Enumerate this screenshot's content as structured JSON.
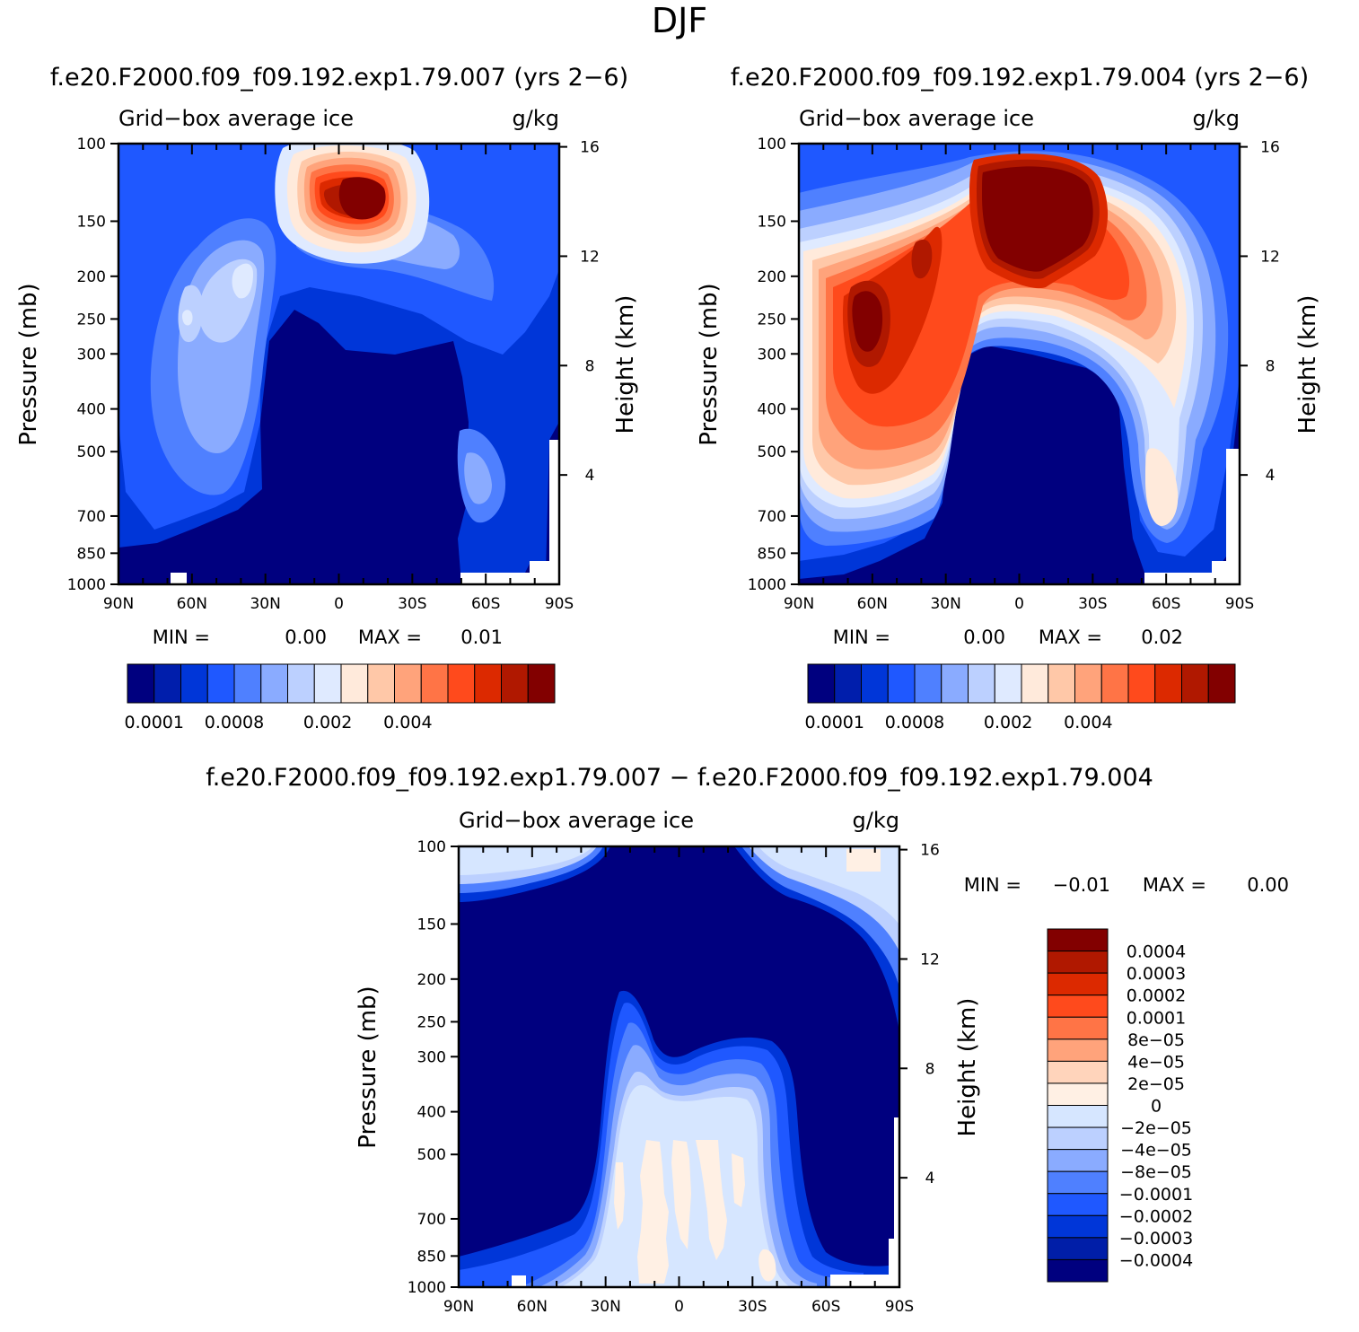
{
  "figure": {
    "title": "DJF",
    "units": "g/kg",
    "variable_label": "Grid−box average ice",
    "colors": {
      "seq": [
        "#00007f",
        "#001eac",
        "#0036d8",
        "#1f58ff",
        "#4f80ff",
        "#8aabff",
        "#bcd0ff",
        "#dfeaff",
        "#ffeadb",
        "#ffc8a8",
        "#ffa37b",
        "#ff7446",
        "#ff4a1c",
        "#dc2900",
        "#b01800",
        "#820000"
      ],
      "diff": [
        "#00007f",
        "#001ea8",
        "#0036d8",
        "#1f58ff",
        "#4f80ff",
        "#8aabff",
        "#bcd0ff",
        "#d6e6ff",
        "#fff0e4",
        "#ffd4bb",
        "#ffa37b",
        "#ff7446",
        "#ff4a1c",
        "#dc2900",
        "#b01800",
        "#820000"
      ]
    }
  },
  "chart_data": [
    {
      "type": "heatmap",
      "id": "case1",
      "title": "f.e20.F2000.f09_f09.192.exp1.79.007 (yrs 2−6)",
      "left_label": "Grid−box average ice",
      "right_label": "g/kg",
      "xlabel": "",
      "ylabel": "Pressure (mb)",
      "y2label": "Height (km)",
      "x_ticks": [
        "90N",
        "60N",
        "30N",
        "0",
        "30S",
        "60S",
        "90S"
      ],
      "y_ticks": [
        100,
        150,
        200,
        250,
        300,
        400,
        500,
        700,
        850,
        1000
      ],
      "y2_ticks": [
        16,
        12,
        8,
        4
      ],
      "xlim": [
        90,
        -90
      ],
      "ylim": [
        100,
        1000
      ],
      "min_label": "MIN =",
      "min_value": "0.00",
      "max_label": "MAX =",
      "max_value": "0.01",
      "colorbar_labels": [
        "0.0001",
        "0.0008",
        "0.002",
        "0.004"
      ],
      "colorbar_label_positions": [
        1,
        4,
        7.5,
        10.5
      ]
    },
    {
      "type": "heatmap",
      "id": "case2",
      "title": "f.e20.F2000.f09_f09.192.exp1.79.004 (yrs 2−6)",
      "left_label": "Grid−box average ice",
      "right_label": "g/kg",
      "xlabel": "",
      "ylabel": "Pressure (mb)",
      "y2label": "Height (km)",
      "x_ticks": [
        "90N",
        "60N",
        "30N",
        "0",
        "30S",
        "60S",
        "90S"
      ],
      "y_ticks": [
        100,
        150,
        200,
        250,
        300,
        400,
        500,
        700,
        850,
        1000
      ],
      "y2_ticks": [
        16,
        12,
        8,
        4
      ],
      "xlim": [
        90,
        -90
      ],
      "ylim": [
        100,
        1000
      ],
      "min_label": "MIN =",
      "min_value": "0.00",
      "max_label": "MAX =",
      "max_value": "0.02",
      "colorbar_labels": [
        "0.0001",
        "0.0008",
        "0.002",
        "0.004"
      ],
      "colorbar_label_positions": [
        1,
        4,
        7.5,
        10.5
      ]
    },
    {
      "type": "heatmap",
      "id": "diff",
      "title": "f.e20.F2000.f09_f09.192.exp1.79.007 − f.e20.F2000.f09_f09.192.exp1.79.004",
      "left_label": "Grid−box average ice",
      "right_label": "g/kg",
      "xlabel": "",
      "ylabel": "Pressure (mb)",
      "y2label": "Height (km)",
      "x_ticks": [
        "90N",
        "60N",
        "30N",
        "0",
        "30S",
        "60S",
        "90S"
      ],
      "y_ticks": [
        100,
        150,
        200,
        250,
        300,
        400,
        500,
        700,
        850,
        1000
      ],
      "y2_ticks": [
        16,
        12,
        8,
        4
      ],
      "xlim": [
        90,
        -90
      ],
      "ylim": [
        100,
        1000
      ],
      "min_label": "MIN =",
      "min_value": "−0.01",
      "max_label": "MAX =",
      "max_value": "0.00",
      "colorbar_levels": [
        "0.0004",
        "0.0003",
        "0.0002",
        "0.0001",
        "8e−05",
        "4e−05",
        "2e−05",
        "0",
        "−2e−05",
        "−4e−05",
        "−8e−05",
        "−0.0001",
        "−0.0002",
        "−0.0003",
        "−0.0004"
      ]
    }
  ]
}
